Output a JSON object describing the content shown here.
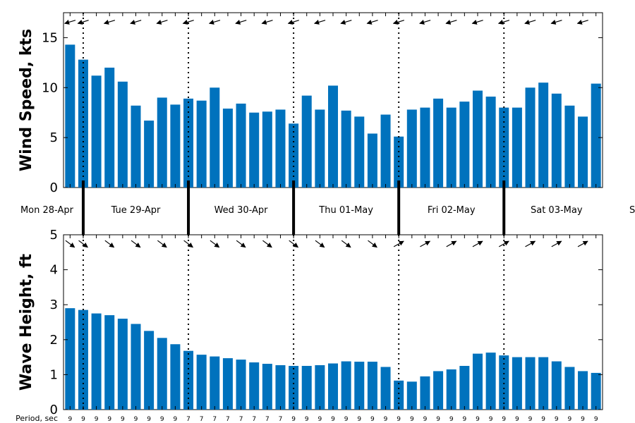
{
  "colors": {
    "bar": "#0072BD",
    "axis": "#000000",
    "divider": "#000000"
  },
  "chart_data": [
    {
      "type": "bar",
      "title": "",
      "xlabel": "",
      "ylabel": "Wind Speed, kts",
      "ylim": [
        0,
        17.5
      ],
      "yticks": [
        0,
        5,
        10,
        15
      ],
      "values": [
        14.3,
        12.8,
        11.2,
        12.0,
        10.6,
        8.2,
        6.7,
        9.0,
        8.3,
        8.9,
        8.7,
        10.0,
        7.9,
        8.4,
        7.5,
        7.6,
        7.8,
        6.4,
        9.2,
        7.8,
        10.2,
        7.7,
        7.1,
        5.4,
        7.3,
        5.1,
        7.8,
        8.0,
        8.9,
        8.0,
        8.6,
        9.7,
        9.1,
        8.0,
        8.0,
        10.0,
        10.5,
        9.4,
        8.2,
        7.1,
        10.4
      ],
      "direction_arrows": [
        "left",
        "left",
        "left",
        "left",
        "up-left",
        "left",
        "left",
        "left",
        "left",
        "left",
        "left",
        "left",
        "left",
        "left",
        "left",
        "left",
        "left",
        "left",
        "left",
        "left",
        "left",
        "left",
        "left",
        "left",
        "up-left",
        "left",
        "left",
        "left",
        "left",
        "left",
        "left",
        "left",
        "left",
        "left",
        "left",
        "left",
        "left",
        "left",
        "left",
        "left",
        "left"
      ]
    },
    {
      "type": "bar",
      "title": "",
      "xlabel": "",
      "ylabel": "Wave Height, ft",
      "ylim": [
        0,
        5
      ],
      "yticks": [
        0,
        1,
        2,
        3,
        4,
        5
      ],
      "values": [
        2.9,
        2.85,
        2.75,
        2.7,
        2.6,
        2.45,
        2.25,
        2.05,
        1.87,
        1.68,
        1.57,
        1.52,
        1.47,
        1.43,
        1.35,
        1.31,
        1.27,
        1.25,
        1.25,
        1.27,
        1.32,
        1.38,
        1.37,
        1.37,
        1.22,
        0.83,
        0.8,
        0.95,
        1.1,
        1.15,
        1.25,
        1.6,
        1.63,
        1.55,
        1.5,
        1.5,
        1.5,
        1.38,
        1.22,
        1.1,
        1.05
      ],
      "direction_arrows": [
        "down-right",
        "down-right",
        "down-right",
        "down-right",
        "down-right",
        "down-right",
        "down-right",
        "down-right",
        "down-right",
        "down-right",
        "down-right",
        "down-right",
        "down-right",
        "down-right",
        "down-right",
        "down-right",
        "down-right",
        "down-right",
        "down-right",
        "down-right",
        "down-right",
        "down-right",
        "down-right",
        "down-right",
        "up-right",
        "up-right",
        "up-right",
        "up-right",
        "up-right",
        "up-right",
        "up-right",
        "up-right",
        "up-right",
        "up-right",
        "up-right",
        "up-right",
        "up-right",
        "up-right",
        "up-right",
        "up-right",
        "down-left"
      ],
      "periods_label": "Period, sec",
      "periods": [
        9,
        9,
        9,
        9,
        9,
        9,
        9,
        9,
        9,
        7,
        7,
        7,
        7,
        7,
        7,
        7,
        7,
        9,
        9,
        9,
        9,
        9,
        9,
        9,
        9,
        9,
        9,
        9,
        9,
        9,
        9,
        9,
        9,
        9,
        9,
        9,
        9,
        9,
        9,
        9,
        9
      ]
    }
  ],
  "day_labels": [
    "Mon 28-Apr",
    "Tue 29-Apr",
    "Wed 30-Apr",
    "Thu 01-May",
    "Fri 02-May",
    "Sat 03-May",
    "Sun"
  ]
}
